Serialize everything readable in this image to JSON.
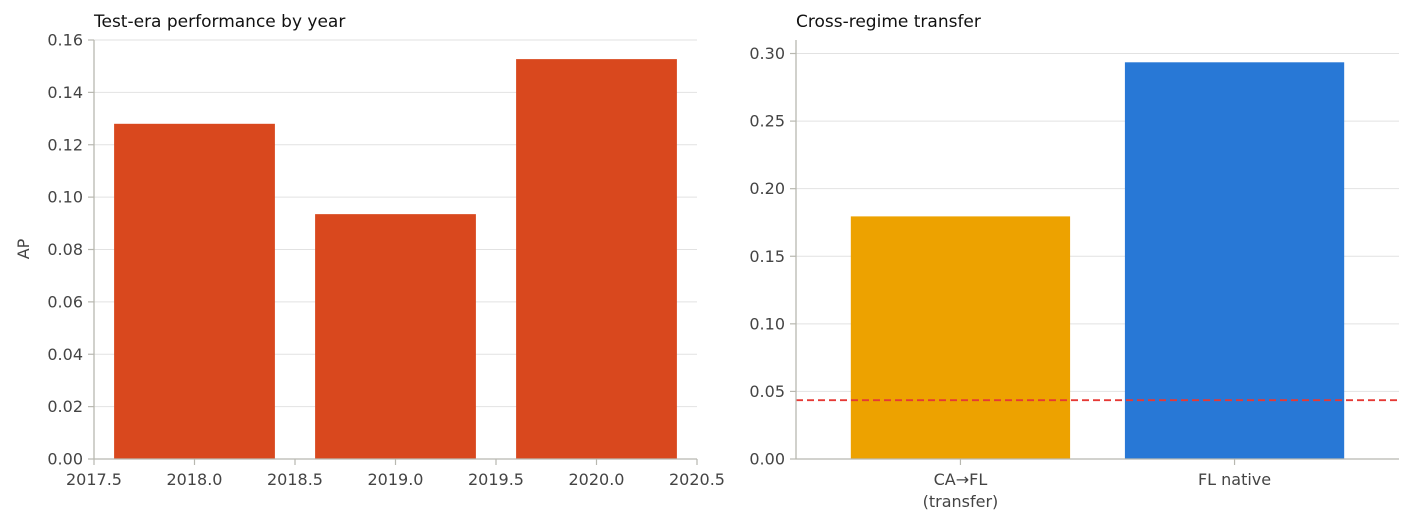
{
  "chart_data": [
    {
      "type": "bar",
      "title": "Test-era performance by year",
      "xlabel": "",
      "ylabel": "AP",
      "x": [
        2018,
        2019,
        2020
      ],
      "values": [
        0.128,
        0.0935,
        0.1527
      ],
      "bar_width": 0.8,
      "xlim": [
        2017.5,
        2020.5
      ],
      "xticks": [
        2017.5,
        2018.0,
        2018.5,
        2019.0,
        2019.5,
        2020.0,
        2020.5
      ],
      "xtick_labels": [
        "2017.5",
        "2018.0",
        "2018.5",
        "2019.0",
        "2019.5",
        "2020.0",
        "2020.5"
      ],
      "ylim": [
        0,
        0.16
      ],
      "yticks": [
        0,
        0.02,
        0.04,
        0.06,
        0.08,
        0.1,
        0.12,
        0.14,
        0.16
      ],
      "ytick_labels": [
        "0.00",
        "0.02",
        "0.04",
        "0.06",
        "0.08",
        "0.10",
        "0.12",
        "0.14",
        "0.16"
      ],
      "bar_color": "#d9481e",
      "grid": "y"
    },
    {
      "type": "bar",
      "title": "Cross-regime transfer",
      "xlabel": "",
      "ylabel": "",
      "categories": [
        "CA→FL\n(transfer)",
        "FL native"
      ],
      "values": [
        0.1795,
        0.2935
      ],
      "colors": [
        "#eda200",
        "#2878d6"
      ],
      "ylim": [
        0,
        0.31
      ],
      "yticks": [
        0,
        0.05,
        0.1,
        0.15,
        0.2,
        0.25,
        0.3
      ],
      "ytick_labels": [
        "0.00",
        "0.05",
        "0.10",
        "0.15",
        "0.20",
        "0.25",
        "0.30"
      ],
      "reference_line": {
        "value": 0.0435,
        "color": "#e53935",
        "style": "dashed"
      },
      "grid": "y"
    }
  ]
}
